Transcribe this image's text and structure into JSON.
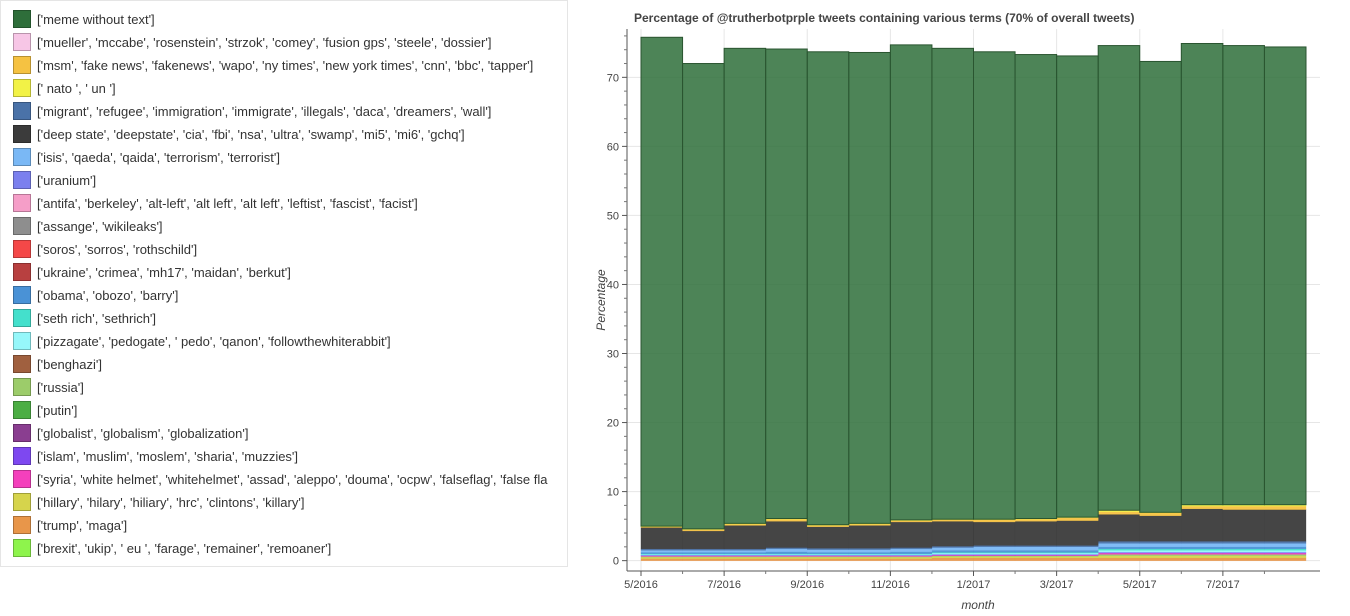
{
  "legend": {
    "items": [
      {
        "label": "['meme without text']",
        "color": "#2e6e3a"
      },
      {
        "label": "['mueller', 'mccabe', 'rosenstein', 'strzok', 'comey', 'fusion gps', 'steele', 'dossier']",
        "color": "#f7c6e6"
      },
      {
        "label": "['msm', 'fake news', 'fakenews', 'wapo', 'ny times', 'new york times', 'cnn', 'bbc', 'tapper']",
        "color": "#f5c242"
      },
      {
        "label": "[' nato ', ' un ']",
        "color": "#f2f246"
      },
      {
        "label": "['migrant', 'refugee', 'immigration', 'immigrate', 'illegals', 'daca', 'dreamers', 'wall']",
        "color": "#4a72a8"
      },
      {
        "label": "['deep state', 'deepstate', 'cia', 'fbi', 'nsa', 'ultra', 'swamp', 'mi5', 'mi6', 'gchq']",
        "color": "#3b3b3b"
      },
      {
        "label": "['isis', 'qaeda', 'qaida', 'terrorism', 'terrorist']",
        "color": "#7ab8f5"
      },
      {
        "label": "['uranium']",
        "color": "#7b80ee"
      },
      {
        "label": "['antifa', 'berkeley', 'alt-left', 'alt left', 'alt left', 'leftist', 'fascist', 'facist']",
        "color": "#f59ec8"
      },
      {
        "label": "['assange', 'wikileaks']",
        "color": "#8e8e8e"
      },
      {
        "label": "['soros', 'sorros', 'rothschild']",
        "color": "#f44848"
      },
      {
        "label": "['ukraine', 'crimea', 'mh17', 'maidan', 'berkut']",
        "color": "#b84040"
      },
      {
        "label": "['obama', 'obozo', 'barry']",
        "color": "#4a92d6"
      },
      {
        "label": "['seth rich', 'sethrich']",
        "color": "#44e0cc"
      },
      {
        "label": "['pizzagate', 'pedogate', ' pedo', 'qanon', 'followthewhiterabbit']",
        "color": "#96f7fa"
      },
      {
        "label": "['benghazi']",
        "color": "#a0603f"
      },
      {
        "label": "['russia']",
        "color": "#9ccc6a"
      },
      {
        "label": "['putin']",
        "color": "#4cae44"
      },
      {
        "label": "['globalist', 'globalism', 'globalization']",
        "color": "#8a3e90"
      },
      {
        "label": "['islam', 'muslim', 'moslem', 'sharia', 'muzzies']",
        "color": "#7e48f0"
      },
      {
        "label": "['syria', 'white helmet', 'whitehelmet', 'assad', 'aleppo', 'douma', 'ocpw', 'falseflag', 'false fla",
        "color": "#f440bc"
      },
      {
        "label": "['hillary', 'hilary', 'hiliary', 'hrc', 'clintons', 'killary']",
        "color": "#d6d44c"
      },
      {
        "label": "['trump', 'maga']",
        "color": "#e8964a"
      },
      {
        "label": "['brexit', 'ukip', ' eu ', 'farage', 'remainer', 'remoaner']",
        "color": "#8ef44c"
      }
    ]
  },
  "chart_data": {
    "type": "bar",
    "stacked": true,
    "title": "Percentage of @trutherbotprple tweets containing various terms (70% of overall tweets)",
    "xlabel": "month",
    "ylabel": "Percentage",
    "ylim": [
      -1.5,
      77
    ],
    "yticks": [
      0,
      10,
      20,
      30,
      40,
      50,
      60,
      70
    ],
    "categories": [
      "5/2016",
      "6/2016",
      "7/2016",
      "8/2016",
      "9/2016",
      "10/2016",
      "11/2016",
      "12/2016",
      "1/2017",
      "2/2017",
      "3/2017",
      "4/2017",
      "5/2017",
      "6/2017",
      "7/2017",
      "8/2017"
    ],
    "xtick_labels": [
      "5/2016",
      "7/2016",
      "9/2016",
      "11/2016",
      "1/2017",
      "3/2017",
      "5/2017",
      "7/2017"
    ],
    "grid": true,
    "series": [
      {
        "name": "['trump', 'maga']",
        "values": [
          0.3,
          0.3,
          0.3,
          0.3,
          0.3,
          0.3,
          0.3,
          0.4,
          0.4,
          0.4,
          0.4,
          0.4,
          0.4,
          0.4,
          0.4,
          0.4
        ]
      },
      {
        "name": "['hillary', 'hilary', 'hiliary', 'hrc', 'clintons', 'killary']",
        "values": [
          0.2,
          0.2,
          0.2,
          0.2,
          0.2,
          0.2,
          0.2,
          0.2,
          0.2,
          0.2,
          0.2,
          0.3,
          0.3,
          0.3,
          0.3,
          0.3
        ]
      },
      {
        "name": "['russia']",
        "values": [
          0.1,
          0.1,
          0.1,
          0.1,
          0.1,
          0.1,
          0.1,
          0.1,
          0.1,
          0.1,
          0.1,
          0.2,
          0.2,
          0.2,
          0.2,
          0.2
        ]
      },
      {
        "name": "['syria', 'white helmet', 'whitehelmet', 'assad', 'aleppo', 'douma', 'ocpw', 'falseflag', 'false fla",
        "values": [
          0.1,
          0.1,
          0.1,
          0.1,
          0.1,
          0.1,
          0.1,
          0.1,
          0.1,
          0.1,
          0.1,
          0.2,
          0.2,
          0.2,
          0.2,
          0.2
        ]
      },
      {
        "name": "['islam', 'muslim', 'moslem', 'sharia', 'muzzies']",
        "values": [
          0.1,
          0.1,
          0.1,
          0.1,
          0.1,
          0.1,
          0.1,
          0.1,
          0.1,
          0.1,
          0.1,
          0.1,
          0.1,
          0.1,
          0.1,
          0.1
        ]
      },
      {
        "name": "['pizzagate', 'pedogate', ' pedo', 'qanon', 'followthewhiterabbit']",
        "values": [
          0.1,
          0.1,
          0.1,
          0.1,
          0.1,
          0.1,
          0.1,
          0.2,
          0.2,
          0.2,
          0.2,
          0.3,
          0.3,
          0.3,
          0.3,
          0.3
        ]
      },
      {
        "name": "['seth rich', 'sethrich']",
        "values": [
          0.1,
          0.1,
          0.1,
          0.1,
          0.1,
          0.1,
          0.1,
          0.1,
          0.1,
          0.1,
          0.1,
          0.2,
          0.2,
          0.2,
          0.2,
          0.2
        ]
      },
      {
        "name": "['obama', 'obozo', 'barry']",
        "values": [
          0.2,
          0.2,
          0.2,
          0.3,
          0.2,
          0.2,
          0.3,
          0.3,
          0.3,
          0.3,
          0.3,
          0.3,
          0.3,
          0.3,
          0.3,
          0.3
        ]
      },
      {
        "name": "['isis', 'qaeda', 'qaida', 'terrorism', 'terrorist']",
        "values": [
          0.3,
          0.3,
          0.3,
          0.4,
          0.4,
          0.4,
          0.4,
          0.4,
          0.5,
          0.5,
          0.5,
          0.5,
          0.5,
          0.5,
          0.5,
          0.5
        ]
      },
      {
        "name": "['migrant', 'refugee', 'immigration', 'immigrate', 'illegals', 'daca', 'dreamers', 'wall']",
        "values": [
          0.2,
          0.2,
          0.2,
          0.2,
          0.2,
          0.2,
          0.2,
          0.2,
          0.2,
          0.2,
          0.2,
          0.3,
          0.3,
          0.3,
          0.3,
          0.3
        ]
      },
      {
        "name": "['deep state', 'deepstate', 'cia', 'fbi', 'nsa', 'ultra', 'swamp', 'mi5', 'mi6', 'gchq']",
        "values": [
          3.1,
          2.6,
          3.4,
          3.8,
          3.1,
          3.3,
          3.7,
          3.6,
          3.4,
          3.5,
          3.6,
          3.9,
          3.7,
          4.7,
          4.6,
          4.6
        ]
      },
      {
        "name": "['msm', 'fake news', 'fakenews', 'wapo', 'ny times', 'new york times', 'cnn', 'bbc', 'tapper']",
        "values": [
          0.1,
          0.2,
          0.2,
          0.3,
          0.2,
          0.2,
          0.2,
          0.2,
          0.3,
          0.3,
          0.4,
          0.4,
          0.4,
          0.4,
          0.5,
          0.5
        ]
      },
      {
        "name": "[' nato ', ' un ']",
        "values": [
          0.1,
          0.1,
          0.1,
          0.1,
          0.1,
          0.1,
          0.1,
          0.1,
          0.1,
          0.1,
          0.1,
          0.2,
          0.1,
          0.2,
          0.2,
          0.2
        ]
      },
      {
        "name": "['meme without text']",
        "values": [
          70.8,
          67.4,
          68.8,
          68.0,
          68.5,
          68.2,
          68.8,
          68.2,
          67.7,
          67.2,
          66.8,
          67.3,
          65.3,
          66.8,
          66.5,
          66.3
        ]
      }
    ]
  }
}
